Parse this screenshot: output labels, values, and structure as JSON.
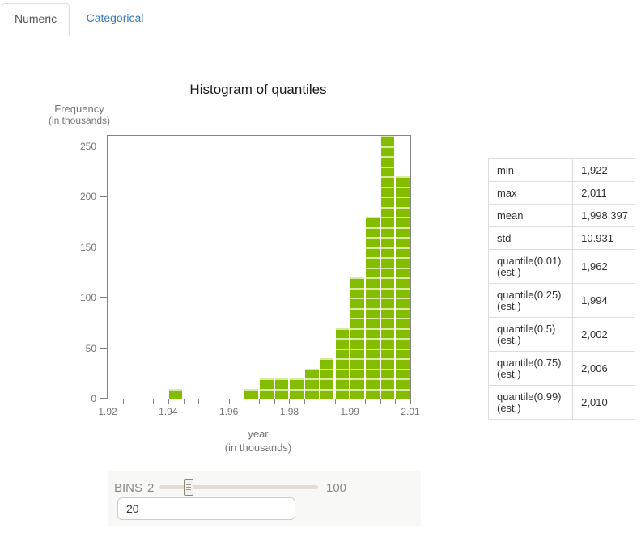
{
  "tabs": [
    {
      "label": "Numeric",
      "active": true
    },
    {
      "label": "Categorical",
      "active": false
    }
  ],
  "colors": {
    "bar_green": "#84bd00",
    "bar_gap_green": "#d8e9a4",
    "tab_link_blue": "#337ab7",
    "axis_gray": "#848484",
    "label_gray": "#757575"
  },
  "chart_data": {
    "type": "bar",
    "title": "Histogram of quantiles",
    "ylabel": "Frequency (in thousands)",
    "ylabel_line1": "Frequency",
    "ylabel_line2": "(in thousands)",
    "xlabel": "year (in thousands)",
    "xlabel_line1": "year",
    "xlabel_line2": "(in thousands)",
    "grid": false,
    "legend": null,
    "ylim": [
      0,
      260
    ],
    "xlim": [
      1.922,
      2.011
    ],
    "bin_count": 20,
    "block_unit": 10,
    "bins": [
      0,
      0,
      0,
      0,
      10,
      0,
      0,
      0,
      0,
      10,
      20,
      20,
      20,
      30,
      40,
      70,
      120,
      180,
      260,
      220
    ],
    "y_ticks": [
      0,
      50,
      100,
      150,
      200,
      250
    ],
    "x_major_ticks": [
      {
        "index": 0,
        "label": "1.92"
      },
      {
        "index": 4,
        "label": "1.94"
      },
      {
        "index": 8,
        "label": "1.96"
      },
      {
        "index": 12,
        "label": "1.98"
      },
      {
        "index": 16,
        "label": "1.99"
      },
      {
        "index": 20,
        "label": "2.01"
      }
    ],
    "minor_tick_edges": 21
  },
  "stats_table": {
    "rows": [
      {
        "label": "min",
        "value": "1,922"
      },
      {
        "label": "max",
        "value": "2,011"
      },
      {
        "label": "mean",
        "value": "1,998.397"
      },
      {
        "label": "std",
        "value": "10.931"
      },
      {
        "label": "quantile(0.01) (est.)",
        "value": "1,962"
      },
      {
        "label": "quantile(0.25) (est.)",
        "value": "1,994"
      },
      {
        "label": "quantile(0.5) (est.)",
        "value": "2,002"
      },
      {
        "label": "quantile(0.75) (est.)",
        "value": "2,006"
      },
      {
        "label": "quantile(0.99) (est.)",
        "value": "2,010"
      }
    ]
  },
  "bins_control": {
    "label": "BINS",
    "min": "2",
    "max": "100",
    "value": "20",
    "slider_percent": 18.4
  }
}
